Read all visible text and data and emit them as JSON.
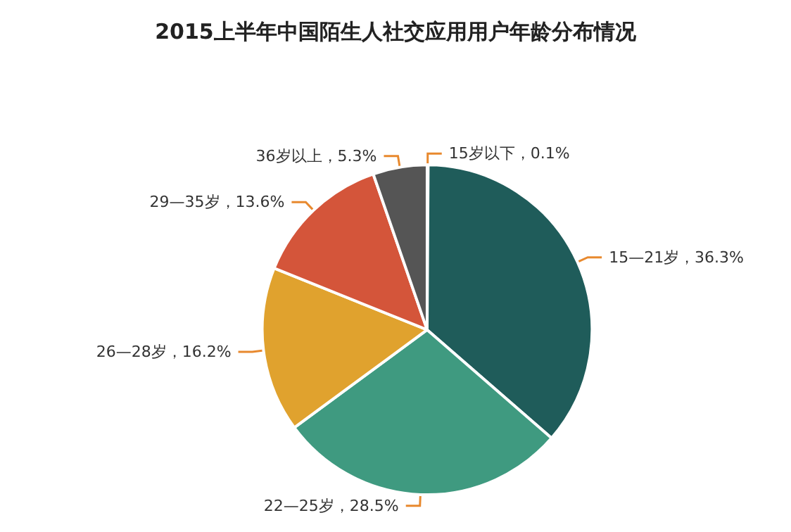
{
  "chart_data": {
    "type": "pie",
    "title": "2015上半年中国陌生人社交应用用户年龄分布情况",
    "categories": [
      "15岁以下",
      "15—21岁",
      "22—25岁",
      "26—28岁",
      "29—35岁",
      "36岁以上"
    ],
    "values": [
      0.1,
      36.3,
      28.5,
      16.2,
      13.6,
      5.3
    ],
    "value_labels": [
      "，0.1%",
      "，36.3%",
      "，28.5%",
      "，16.2%",
      "，13.6%",
      "，5.3%"
    ],
    "colors": [
      "#7b5ea7",
      "#1f5c5a",
      "#3f9a80",
      "#e0a22e",
      "#d4553a",
      "#555555"
    ],
    "legend": false
  }
}
